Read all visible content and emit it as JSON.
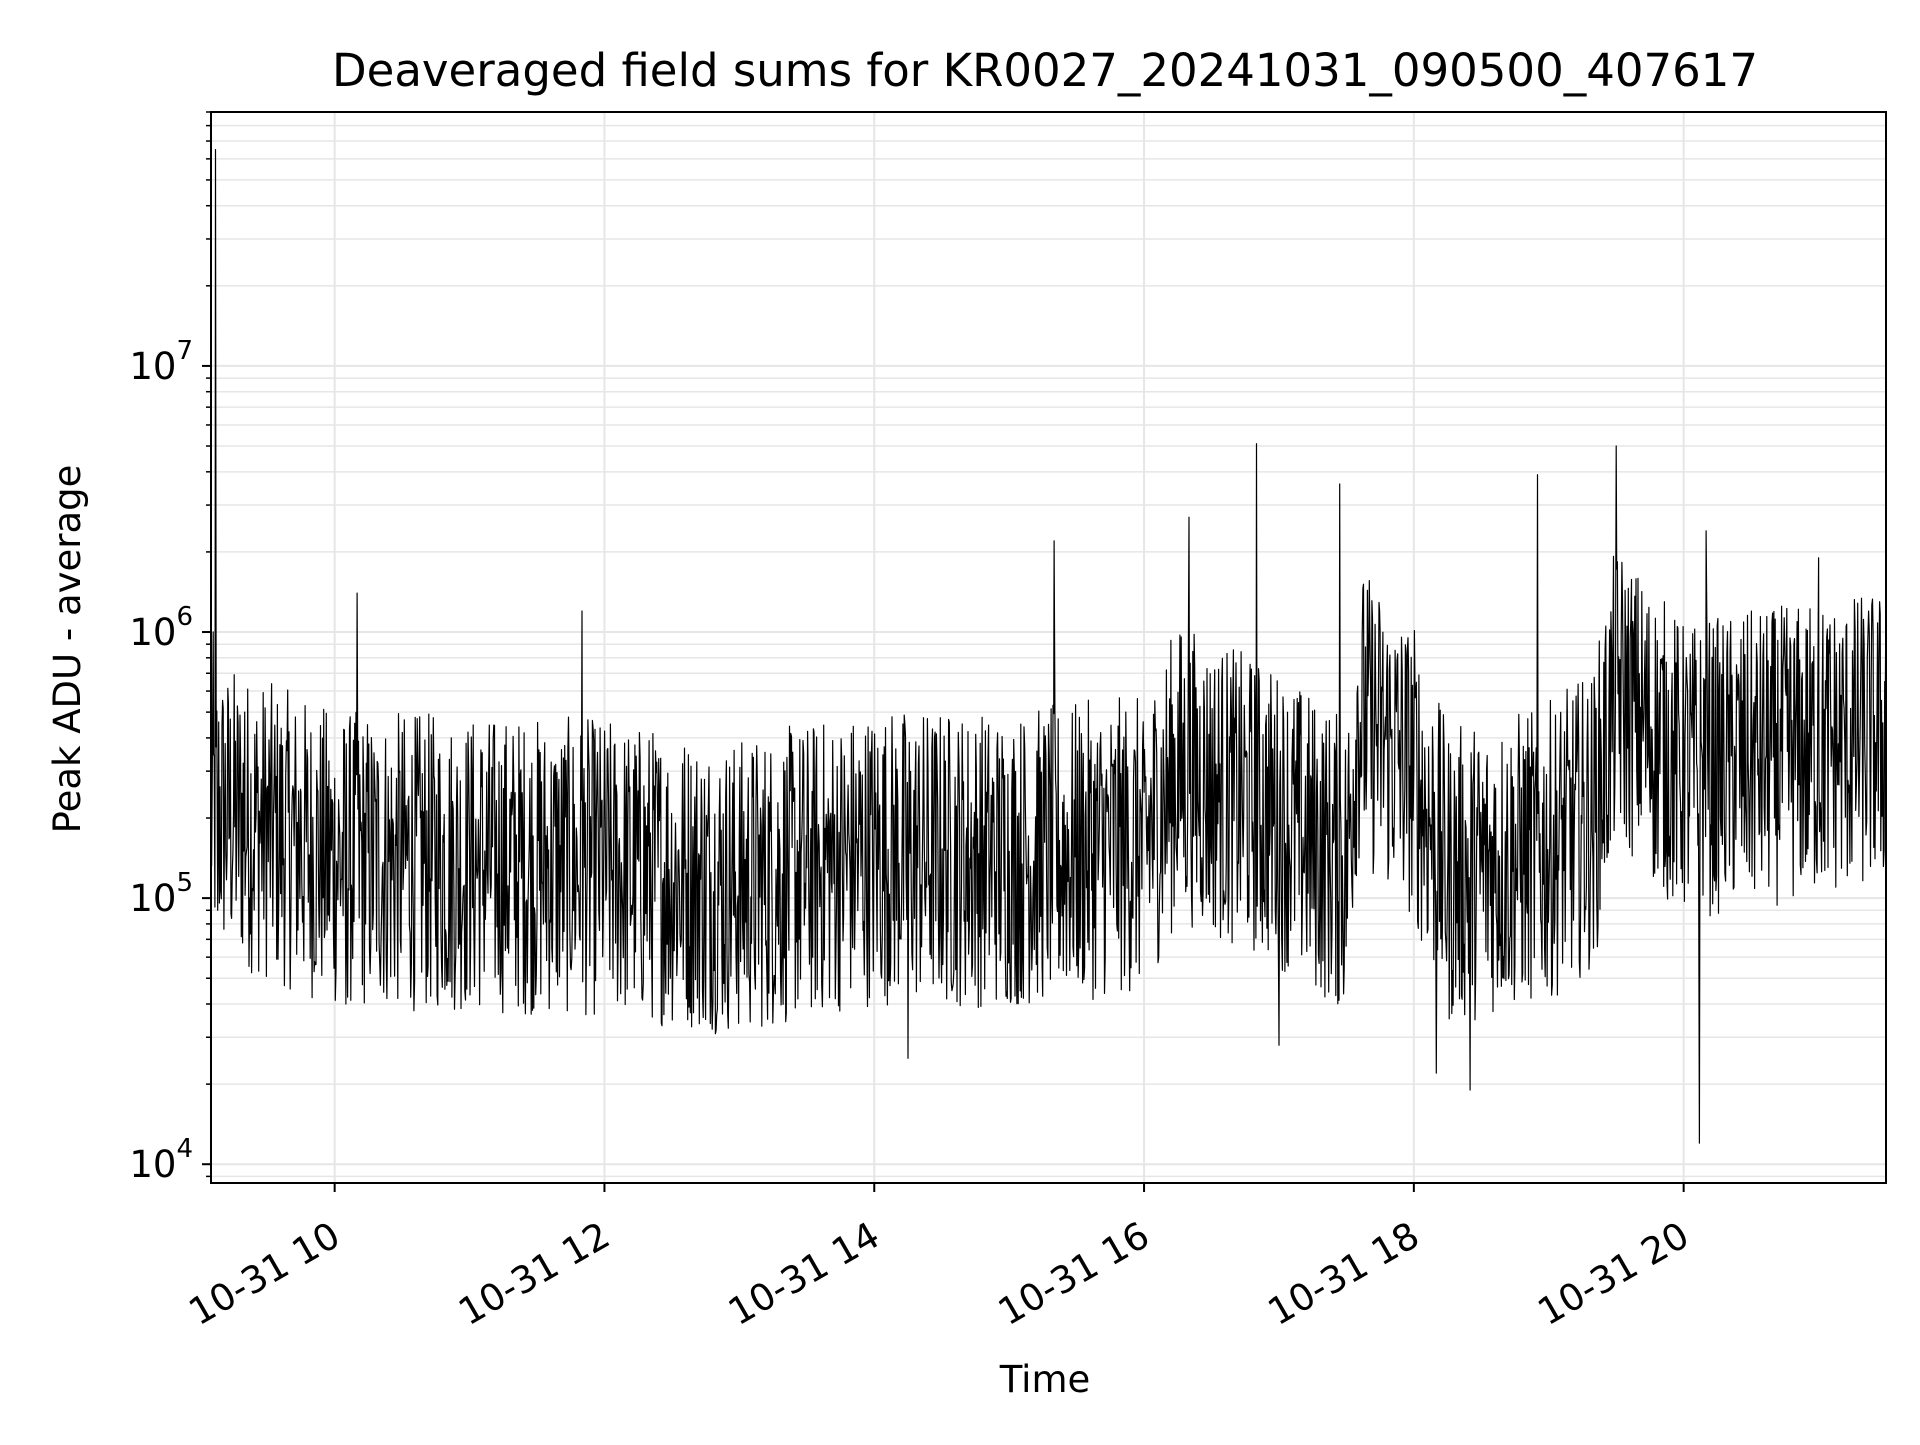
{
  "chart_data": {
    "type": "line",
    "title": "Deaveraged field sums for KR0027_20241031_090500_407617",
    "xlabel": "Time",
    "ylabel": "Peak ADU - average",
    "x_range": [
      "2024-10-31 09:05",
      "2024-10-31 21:30"
    ],
    "y_scale": "log",
    "ylim": [
      8500,
      90000000
    ],
    "grid": true,
    "line_color": "#000000",
    "grid_color": "#e6e6e6",
    "x_ticks": [
      {
        "value": "2024-10-31 10:00",
        "label": "10-31 10"
      },
      {
        "value": "2024-10-31 12:00",
        "label": "10-31 12"
      },
      {
        "value": "2024-10-31 14:00",
        "label": "10-31 14"
      },
      {
        "value": "2024-10-31 16:00",
        "label": "10-31 16"
      },
      {
        "value": "2024-10-31 18:00",
        "label": "10-31 18"
      },
      {
        "value": "2024-10-31 20:00",
        "label": "10-31 20"
      }
    ],
    "y_ticks": [
      {
        "value": 10000,
        "base": "10",
        "exp": "4"
      },
      {
        "value": 100000,
        "base": "10",
        "exp": "5"
      },
      {
        "value": 1000000,
        "base": "10",
        "exp": "6"
      },
      {
        "value": 10000000,
        "base": "10",
        "exp": "7"
      }
    ],
    "series": [
      {
        "points": [
          [
            "2024-10-31 09:05",
            200000
          ],
          [
            "2024-10-31 09:06",
            1000000
          ],
          [
            "2024-10-31 09:07",
            65000000
          ],
          [
            "2024-10-31 09:08",
            90000
          ],
          [
            "2024-10-31 09:20",
            500000
          ],
          [
            "2024-10-31 09:45",
            250000
          ],
          [
            "2024-10-31 10:05",
            40000
          ],
          [
            "2024-10-31 10:10",
            1400000
          ],
          [
            "2024-10-31 11:00",
            150000
          ],
          [
            "2024-10-31 11:50",
            1200000
          ],
          [
            "2024-10-31 12:45",
            35000
          ],
          [
            "2024-10-31 13:30",
            130000
          ],
          [
            "2024-10-31 14:15",
            25000
          ],
          [
            "2024-10-31 15:00",
            150000
          ],
          [
            "2024-10-31 15:20",
            2200000
          ],
          [
            "2024-10-31 16:00",
            250000
          ],
          [
            "2024-10-31 16:20",
            2700000
          ],
          [
            "2024-10-31 16:50",
            5100000
          ],
          [
            "2024-10-31 17:00",
            28000
          ],
          [
            "2024-10-31 17:27",
            3600000
          ],
          [
            "2024-10-31 17:45",
            1000000
          ],
          [
            "2024-10-31 18:10",
            22000
          ],
          [
            "2024-10-31 18:25",
            19000
          ],
          [
            "2024-10-31 18:55",
            3900000
          ],
          [
            "2024-10-31 19:30",
            5000000
          ],
          [
            "2024-10-31 20:00",
            400000
          ],
          [
            "2024-10-31 20:07",
            12000
          ],
          [
            "2024-10-31 20:10",
            2400000
          ],
          [
            "2024-10-31 21:00",
            1900000
          ],
          [
            "2024-10-31 21:30",
            1500000
          ]
        ],
        "baseline": [
          [
            "2024-10-31 09:05",
            220000
          ],
          [
            "2024-10-31 10:00",
            140000
          ],
          [
            "2024-10-31 12:00",
            130000
          ],
          [
            "2024-10-31 13:00",
            110000
          ],
          [
            "2024-10-31 14:00",
            145000
          ],
          [
            "2024-10-31 15:00",
            140000
          ],
          [
            "2024-10-31 16:00",
            160000
          ],
          [
            "2024-10-31 16:15",
            300000
          ],
          [
            "2024-10-31 17:00",
            200000
          ],
          [
            "2024-10-31 17:30",
            130000
          ],
          [
            "2024-10-31 17:35",
            500000
          ],
          [
            "2024-10-31 18:00",
            300000
          ],
          [
            "2024-10-31 18:15",
            120000
          ],
          [
            "2024-10-31 19:00",
            150000
          ],
          [
            "2024-10-31 19:20",
            200000
          ],
          [
            "2024-10-31 19:30",
            600000
          ],
          [
            "2024-10-31 20:00",
            300000
          ],
          [
            "2024-10-31 21:30",
            400000
          ]
        ]
      }
    ]
  }
}
